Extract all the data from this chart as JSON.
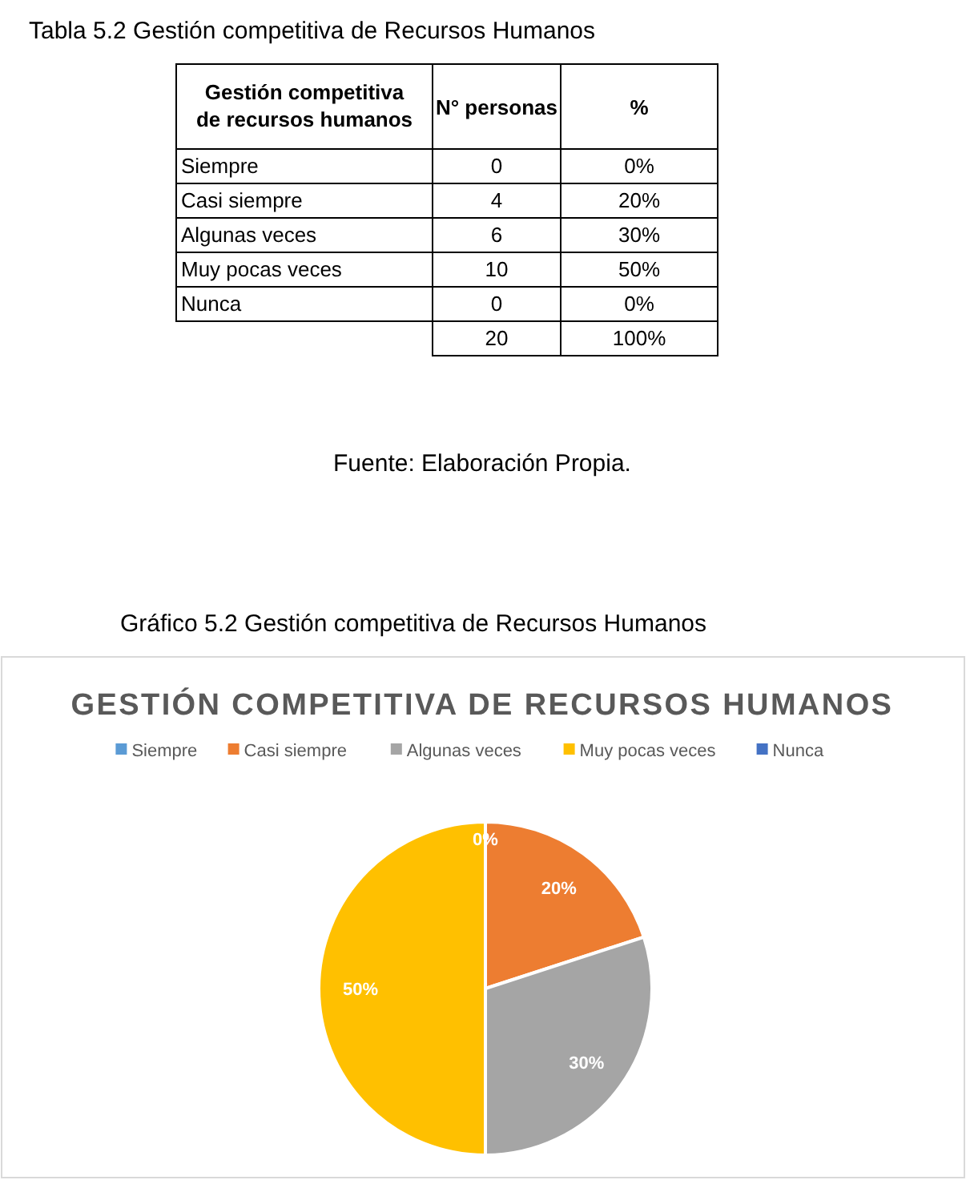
{
  "chart_data": [
    {
      "type": "other",
      "title": "Tabla 5.2 Gestión competitiva de Recursos Humanos",
      "legend_title": "Gestión competitiva de recursos humanos",
      "categories": [
        "Siempre",
        "Casi siempre",
        "Algunas veces",
        "Muy pocas veces",
        "Nunca"
      ],
      "totals": [
        "20",
        "100%"
      ],
      "data_labels": true,
      "series": [
        {
          "name": "N° personas",
          "values": [
            0,
            4,
            6,
            10,
            0
          ]
        },
        {
          "name": "%",
          "values": [
            0,
            20,
            30,
            50,
            0
          ],
          "value_labels": [
            "0%",
            "20%",
            "30%",
            "50%",
            "0%"
          ]
        }
      ],
      "annotations": [
        "Fuente: Elaboración Propia."
      ]
    },
    {
      "type": "pie",
      "title": "GESTIÓN COMPETITIVA DE RECURSOS HUMANOS",
      "categories": [
        "Siempre",
        "Casi siempre",
        "Algunas veces",
        "Muy pocas veces",
        "Nunca"
      ],
      "values": [
        0,
        20,
        30,
        50,
        0
      ],
      "colors": [
        "#5b9bd5",
        "#ed7d31",
        "#a5a5a5",
        "#ffc000",
        "#4472c4"
      ],
      "value_labels": [
        "0%",
        "20%",
        "30%",
        "50%",
        null
      ],
      "legend": "top",
      "annotations": [
        "Gráfico 5.2 Gestión competitiva de Recursos Humanos"
      ]
    }
  ]
}
